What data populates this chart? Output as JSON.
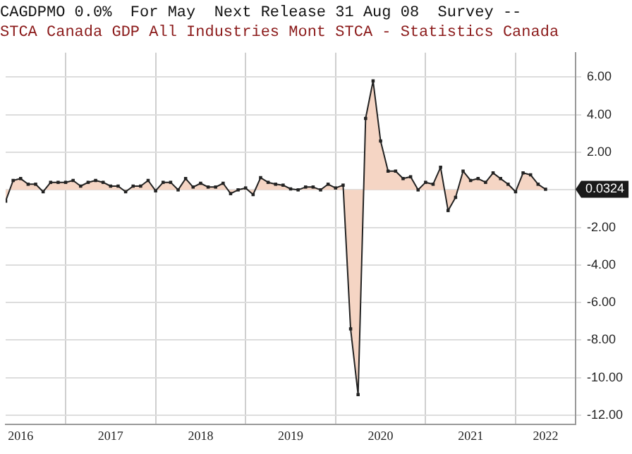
{
  "chart_data": {
    "type": "area",
    "title": "CAGDPMO 0.0%  For May  Next Release 31 Aug 08  Survey --",
    "subtitle": "STCA Canada GDP All Industries Mont STCA - Statistics Canada",
    "x": [
      "2016-05",
      "2016-06",
      "2016-07",
      "2016-08",
      "2016-09",
      "2016-10",
      "2016-11",
      "2016-12",
      "2017-01",
      "2017-02",
      "2017-03",
      "2017-04",
      "2017-05",
      "2017-06",
      "2017-07",
      "2017-08",
      "2017-09",
      "2017-10",
      "2017-11",
      "2017-12",
      "2018-01",
      "2018-02",
      "2018-03",
      "2018-04",
      "2018-05",
      "2018-06",
      "2018-07",
      "2018-08",
      "2018-09",
      "2018-10",
      "2018-11",
      "2018-12",
      "2019-01",
      "2019-02",
      "2019-03",
      "2019-04",
      "2019-05",
      "2019-06",
      "2019-07",
      "2019-08",
      "2019-09",
      "2019-10",
      "2019-11",
      "2019-12",
      "2020-01",
      "2020-02",
      "2020-03",
      "2020-04",
      "2020-05",
      "2020-06",
      "2020-07",
      "2020-08",
      "2020-09",
      "2020-10",
      "2020-11",
      "2020-12",
      "2021-01",
      "2021-02",
      "2021-03",
      "2021-04",
      "2021-05",
      "2021-06",
      "2021-07",
      "2021-08",
      "2021-09",
      "2021-10",
      "2021-11",
      "2021-12",
      "2022-01",
      "2022-02",
      "2022-03",
      "2022-04",
      "2022-05"
    ],
    "series": [
      {
        "color": "#f5d5c4",
        "values": [
          -0.6,
          0.5,
          0.6,
          0.3,
          0.3,
          -0.1,
          0.4,
          0.4,
          0.4,
          0.5,
          0.2,
          0.4,
          0.5,
          0.4,
          0.2,
          0.2,
          -0.1,
          0.2,
          0.2,
          0.5,
          -0.05,
          0.4,
          0.4,
          0.0,
          0.6,
          0.15,
          0.35,
          0.15,
          0.15,
          0.35,
          -0.2,
          0.0,
          0.1,
          -0.25,
          0.65,
          0.4,
          0.3,
          0.25,
          0.05,
          0.0,
          0.15,
          0.15,
          0.0,
          0.3,
          0.1,
          0.25,
          -7.4,
          -10.9,
          3.8,
          5.8,
          2.6,
          1.0,
          1.0,
          0.6,
          0.7,
          0.0,
          0.4,
          0.3,
          1.2,
          -1.1,
          -0.4,
          1.0,
          0.5,
          0.6,
          0.4,
          0.9,
          0.6,
          0.3,
          -0.1,
          0.9,
          0.8,
          0.3,
          0.0324
        ]
      }
    ],
    "marker": "square",
    "xlim": [
      "2016-05",
      "2022-09"
    ],
    "xticks": [
      {
        "value": "2016-07",
        "label": "2016"
      },
      {
        "value": "2017-01",
        "label": null
      },
      {
        "value": "2017-07",
        "label": "2017"
      },
      {
        "value": "2018-01",
        "label": null
      },
      {
        "value": "2018-07",
        "label": "2018"
      },
      {
        "value": "2019-01",
        "label": null
      },
      {
        "value": "2019-07",
        "label": "2019"
      },
      {
        "value": "2020-01",
        "label": null
      },
      {
        "value": "2020-07",
        "label": "2020"
      },
      {
        "value": "2021-01",
        "label": null
      },
      {
        "value": "2021-07",
        "label": "2021"
      },
      {
        "value": "2022-01",
        "label": null
      },
      {
        "value": "2022-05",
        "label": "2022"
      }
    ],
    "ylim": [
      -12.5,
      7.3
    ],
    "yticks": [
      {
        "value": -12,
        "label": "-12.00"
      },
      {
        "value": -10,
        "label": "-10.00"
      },
      {
        "value": -8,
        "label": "-8.00"
      },
      {
        "value": -6,
        "label": "-6.00"
      },
      {
        "value": -4,
        "label": "-4.00"
      },
      {
        "value": -2,
        "label": "-2.00"
      },
      {
        "value": 0,
        "label": null
      },
      {
        "value": 2,
        "label": "2.00"
      },
      {
        "value": 4,
        "label": "4.00"
      },
      {
        "value": 6,
        "label": "6.00"
      }
    ],
    "grid": true,
    "legend": false,
    "annotations": [
      "0.0324"
    ]
  }
}
